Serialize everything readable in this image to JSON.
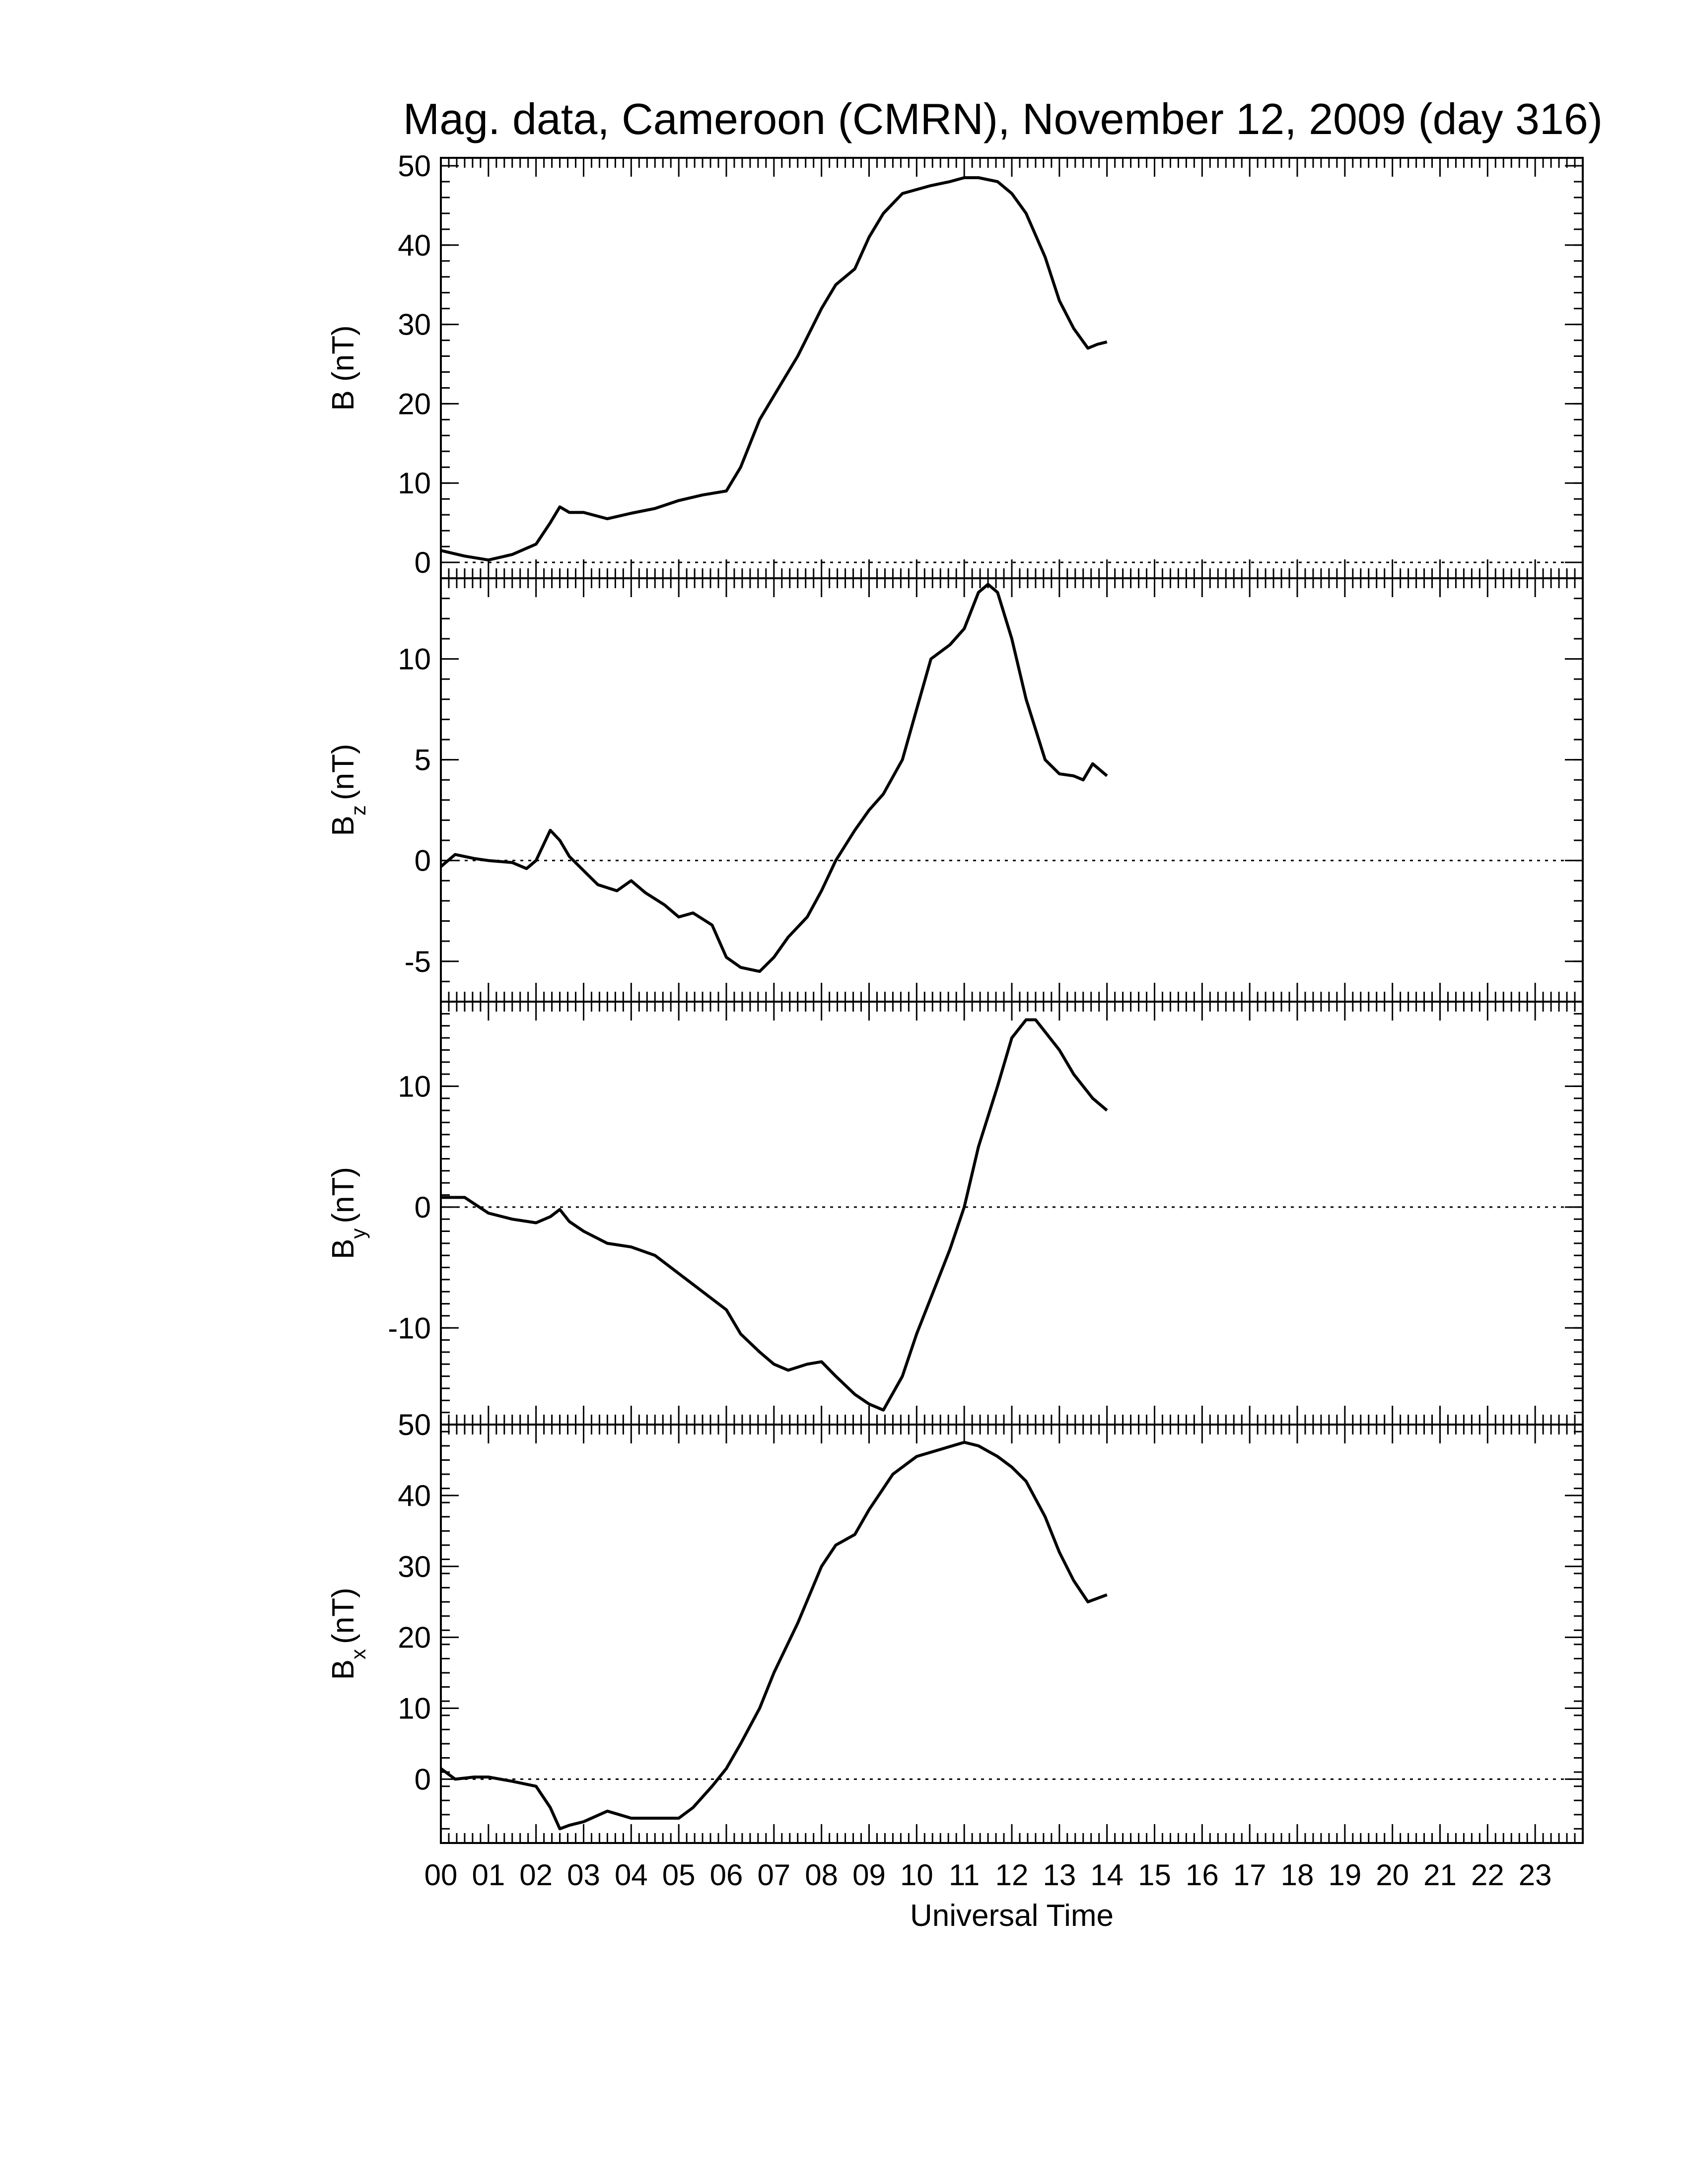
{
  "chart_data": {
    "type": "line",
    "title": "Mag. data, Cameroon (CMRN), November 12, 2009 (day 316)",
    "xlabel": "Universal Time",
    "xlim": [
      0,
      24
    ],
    "xticks": [
      0,
      1,
      2,
      3,
      4,
      5,
      6,
      7,
      8,
      9,
      10,
      11,
      12,
      13,
      14,
      15,
      16,
      17,
      18,
      19,
      20,
      21,
      22,
      23
    ],
    "xticklabels": [
      "00",
      "01",
      "02",
      "03",
      "04",
      "05",
      "06",
      "07",
      "08",
      "09",
      "10",
      "11",
      "12",
      "13",
      "14",
      "15",
      "16",
      "17",
      "18",
      "19",
      "20",
      "21",
      "22",
      "23"
    ],
    "zero_line": "dotted",
    "panels": [
      {
        "name": "B",
        "ylabel": "B (nT)",
        "ylim": [
          -2,
          51
        ],
        "yticks": [
          0,
          10,
          20,
          30,
          40,
          50
        ],
        "yticklabels": [
          "0",
          "10",
          "20",
          "30",
          "40",
          "50"
        ],
        "x": [
          0,
          0.5,
          1.0,
          1.5,
          2.0,
          2.3,
          2.5,
          2.7,
          3.0,
          3.5,
          4.0,
          4.5,
          5.0,
          5.5,
          6.0,
          6.3,
          6.7,
          7.0,
          7.5,
          8.0,
          8.3,
          8.7,
          9.0,
          9.3,
          9.7,
          10.0,
          10.3,
          10.7,
          11.0,
          11.3,
          11.7,
          12.0,
          12.3,
          12.7,
          13.0,
          13.3,
          13.6,
          13.8,
          14.0
        ],
        "values": [
          1.5,
          0.8,
          0.3,
          1.0,
          2.3,
          5.0,
          7.0,
          6.3,
          6.3,
          5.5,
          6.2,
          6.8,
          7.8,
          8.5,
          9.0,
          12.0,
          18.0,
          21.0,
          26.0,
          32.0,
          35.0,
          37.0,
          41.0,
          44.0,
          46.5,
          47.0,
          47.5,
          48.0,
          48.5,
          48.5,
          48.0,
          46.5,
          44.0,
          38.5,
          33.0,
          29.5,
          27.0,
          27.5,
          27.8
        ]
      },
      {
        "name": "Bz",
        "ylabel": "B",
        "ylabel_sub": "z",
        "ylabel_unit": "(nT)",
        "ylim": [
          -7,
          14
        ],
        "yticks": [
          -5,
          0,
          5,
          10
        ],
        "yticklabels": [
          "-5",
          "0",
          "5",
          "10"
        ],
        "x": [
          0,
          0.3,
          0.7,
          1.0,
          1.5,
          1.8,
          2.0,
          2.3,
          2.5,
          2.7,
          3.0,
          3.3,
          3.7,
          4.0,
          4.3,
          4.7,
          5.0,
          5.3,
          5.7,
          6.0,
          6.3,
          6.7,
          7.0,
          7.3,
          7.7,
          8.0,
          8.3,
          8.7,
          9.0,
          9.3,
          9.7,
          10.0,
          10.3,
          10.7,
          11.0,
          11.3,
          11.5,
          11.7,
          12.0,
          12.3,
          12.7,
          13.0,
          13.3,
          13.5,
          13.7,
          14.0
        ],
        "values": [
          -0.3,
          0.3,
          0.1,
          0.0,
          -0.1,
          -0.4,
          0.0,
          1.5,
          1.0,
          0.2,
          -0.5,
          -1.2,
          -1.5,
          -1.0,
          -1.6,
          -2.2,
          -2.8,
          -2.6,
          -3.2,
          -4.8,
          -5.3,
          -5.5,
          -4.8,
          -3.8,
          -2.8,
          -1.5,
          0.0,
          1.5,
          2.5,
          3.3,
          5.0,
          7.5,
          10.0,
          10.7,
          11.5,
          13.3,
          13.7,
          13.3,
          11.0,
          8.0,
          5.0,
          4.3,
          4.2,
          4.0,
          4.8,
          4.2
        ]
      },
      {
        "name": "By",
        "ylabel": "B",
        "ylabel_sub": "y",
        "ylabel_unit": "(nT)",
        "ylim": [
          -18,
          17
        ],
        "yticks": [
          -10,
          0,
          10
        ],
        "yticklabels": [
          "-10",
          "0",
          "10"
        ],
        "x": [
          0,
          0.5,
          1.0,
          1.5,
          2.0,
          2.3,
          2.5,
          2.7,
          3.0,
          3.5,
          4.0,
          4.5,
          5.0,
          5.5,
          6.0,
          6.3,
          6.7,
          7.0,
          7.3,
          7.7,
          8.0,
          8.3,
          8.7,
          9.0,
          9.3,
          9.7,
          10.0,
          10.3,
          10.7,
          11.0,
          11.3,
          11.7,
          12.0,
          12.3,
          12.5,
          12.7,
          13.0,
          13.3,
          13.7,
          14.0
        ],
        "values": [
          0.8,
          0.8,
          -0.5,
          -1.0,
          -1.3,
          -0.8,
          -0.2,
          -1.2,
          -2.0,
          -3.0,
          -3.3,
          -4.0,
          -5.5,
          -7.0,
          -8.5,
          -10.5,
          -12.0,
          -13.0,
          -13.5,
          -13.0,
          -12.8,
          -14.0,
          -15.5,
          -16.3,
          -16.8,
          -14.0,
          -10.5,
          -7.5,
          -3.5,
          0.0,
          5.0,
          10.0,
          14.0,
          15.5,
          15.5,
          14.5,
          13.0,
          11.0,
          9.0,
          8.0
        ]
      },
      {
        "name": "Bx",
        "ylabel": "B",
        "ylabel_sub": "x",
        "ylabel_unit": "(nT)",
        "ylim": [
          -9,
          50
        ],
        "yticks": [
          0,
          10,
          20,
          30,
          40,
          50
        ],
        "yticklabels": [
          "0",
          "10",
          "20",
          "30",
          "40",
          "50"
        ],
        "x": [
          0,
          0.3,
          0.7,
          1.0,
          1.5,
          2.0,
          2.3,
          2.5,
          2.7,
          3.0,
          3.5,
          4.0,
          4.5,
          5.0,
          5.3,
          5.7,
          6.0,
          6.3,
          6.7,
          7.0,
          7.5,
          8.0,
          8.3,
          8.7,
          9.0,
          9.5,
          10.0,
          10.5,
          11.0,
          11.3,
          11.7,
          12.0,
          12.3,
          12.7,
          13.0,
          13.3,
          13.6,
          13.8,
          14.0
        ],
        "values": [
          1.5,
          0.0,
          0.3,
          0.3,
          -0.3,
          -1.0,
          -4.0,
          -7.0,
          -6.5,
          -6.0,
          -4.5,
          -5.5,
          -5.5,
          -5.5,
          -4.0,
          -1.0,
          1.5,
          5.0,
          10.0,
          15.0,
          22.0,
          30.0,
          33.0,
          34.5,
          38.0,
          43.0,
          45.5,
          46.5,
          47.5,
          47.0,
          45.5,
          44.0,
          42.0,
          37.0,
          32.0,
          28.0,
          25.0,
          25.5,
          26.0
        ]
      }
    ]
  }
}
